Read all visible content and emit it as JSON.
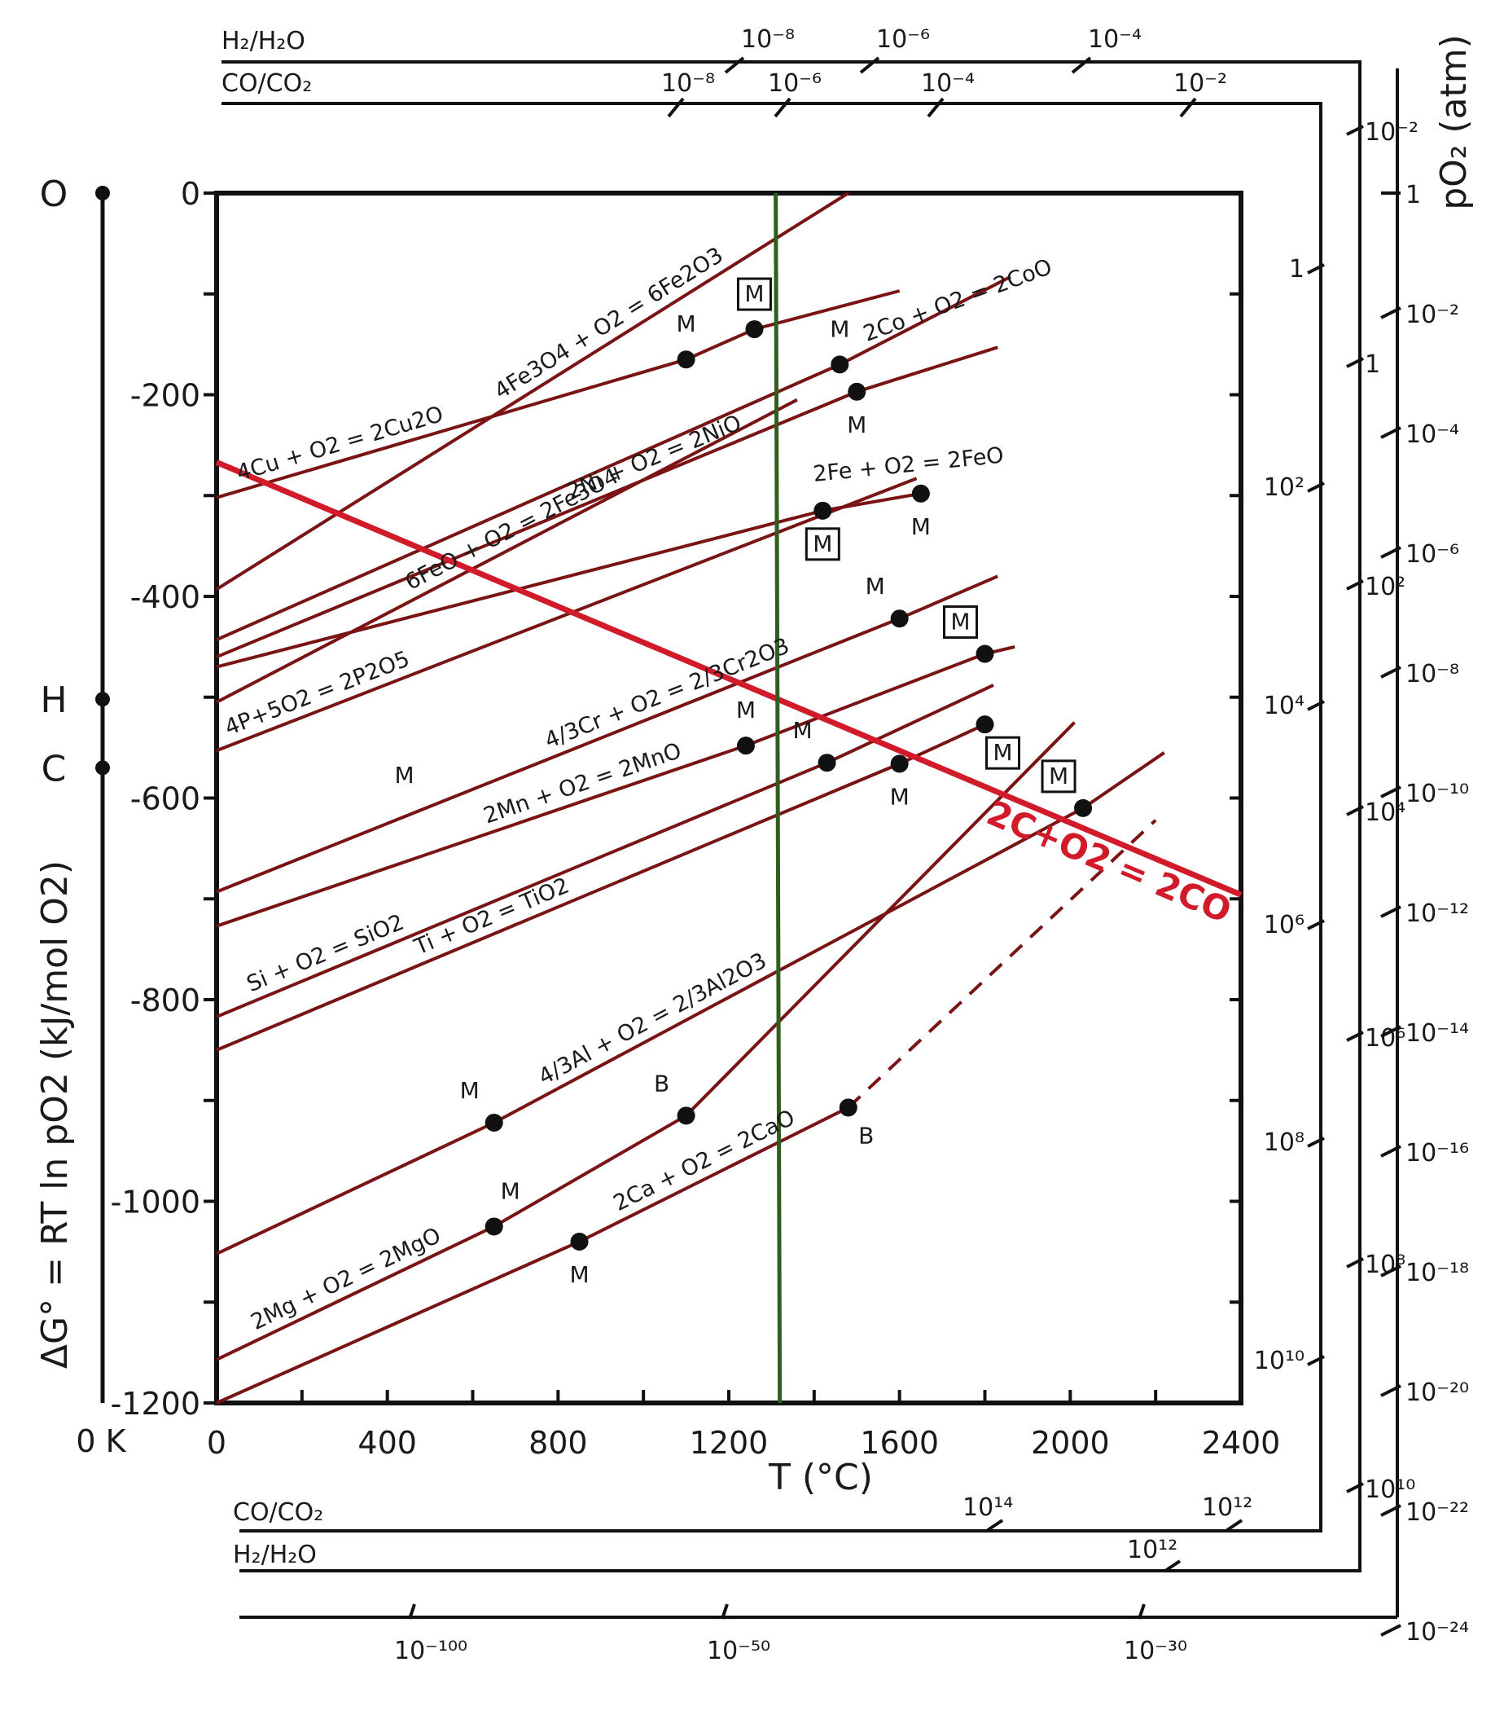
{
  "colors": {
    "reaction_line": "#7a1414",
    "carbon_line": "#d11a2a",
    "reference_line": "#2f5e1e",
    "axis": "#111111",
    "marker": "#111111"
  },
  "chart_data": {
    "type": "line",
    "title": "",
    "xlabel": "T (°C)",
    "ylabel": "ΔG° = RT ln pO2 (kJ/mol O2)",
    "xlim": [
      0,
      2400
    ],
    "ylim": [
      -1200,
      0
    ],
    "x_ticks": [
      "0",
      "400",
      "800",
      "1200",
      "1600",
      "2000",
      "2400"
    ],
    "y_ticks": [
      "0",
      "-200",
      "-400",
      "-600",
      "-800",
      "-1000",
      "-1200"
    ],
    "reference_line_T": 1310,
    "series": [
      {
        "name": "4Fe3O4 + O2 = 6Fe2O3",
        "x": [
          0,
          1480
        ],
        "y": [
          -393,
          0
        ],
        "color": "reaction_line"
      },
      {
        "name": "4Cu + O2 = 2Cu2O",
        "x": [
          0,
          1100,
          1260,
          1600
        ],
        "y": [
          -302,
          -165,
          -135,
          -97
        ],
        "color": "reaction_line"
      },
      {
        "name": "2Co + O2 = 2CoO",
        "x": [
          0,
          1460,
          1860
        ],
        "y": [
          -443,
          -170,
          -83
        ],
        "color": "reaction_line"
      },
      {
        "name": "2Ni + O2 = 2NiO",
        "x": [
          0,
          1500,
          1830
        ],
        "y": [
          -460,
          -197,
          -153
        ],
        "color": "reaction_line"
      },
      {
        "name": "6FeO + O2 = 2Fe3O4",
        "x": [
          0,
          1360
        ],
        "y": [
          -505,
          -205
        ],
        "color": "reaction_line"
      },
      {
        "name": "2Fe + O2 = 2FeO",
        "x": [
          0,
          1420,
          1650
        ],
        "y": [
          -470,
          -315,
          -298
        ],
        "color": "reaction_line"
      },
      {
        "name": "4P+5O2 = 2P2O5",
        "x": [
          0,
          1640
        ],
        "y": [
          -553,
          -283
        ],
        "color": "reaction_line"
      },
      {
        "name": "4/3Cr + O2 = 2/3Cr2O3",
        "x": [
          0,
          1600,
          1830
        ],
        "y": [
          -693,
          -422,
          -380
        ],
        "color": "reaction_line"
      },
      {
        "name": "2Mn + O2 = 2MnO",
        "x": [
          0,
          1240,
          1800,
          1870
        ],
        "y": [
          -727,
          -548,
          -457,
          -450
        ],
        "color": "reaction_line"
      },
      {
        "name": "Si + O2 = SiO2",
        "x": [
          0,
          1430,
          1820
        ],
        "y": [
          -817,
          -565,
          -488
        ],
        "color": "reaction_line"
      },
      {
        "name": "Ti + O2 = TiO2",
        "x": [
          0,
          1600,
          1800
        ],
        "y": [
          -850,
          -566,
          -527
        ],
        "color": "reaction_line"
      },
      {
        "name": "4/3Al + O2 = 2/3Al2O3",
        "x": [
          0,
          650,
          2030,
          2220
        ],
        "y": [
          -1052,
          -922,
          -610,
          -555
        ],
        "color": "reaction_line"
      },
      {
        "name": "2Mg + O2 = 2MgO",
        "x": [
          0,
          650,
          1100,
          2010
        ],
        "y": [
          -1157,
          -1025,
          -915,
          -525
        ],
        "color": "reaction_line"
      },
      {
        "name": "2Ca + O2 = 2CaO",
        "x": [
          0,
          850,
          1480
        ],
        "y": [
          -1200,
          -1040,
          -907
        ],
        "color": "reaction_line"
      },
      {
        "name": "2Ca + O2 = 2CaO (extrapolated)",
        "x": [
          1480,
          2200
        ],
        "y": [
          -907,
          -622
        ],
        "color": "reaction_line",
        "dashed": true
      },
      {
        "name": "2C+O2 = 2CO",
        "x": [
          0,
          2400
        ],
        "y": [
          -267,
          -696
        ],
        "color": "carbon_line"
      }
    ],
    "phase_markers": [
      {
        "x": 1100,
        "y": -165,
        "label": "M",
        "boxed": false,
        "pos": "above"
      },
      {
        "x": 1260,
        "y": -135,
        "label": "M",
        "boxed": true,
        "pos": "above"
      },
      {
        "x": 1460,
        "y": -170,
        "label": "M",
        "boxed": false,
        "pos": "above"
      },
      {
        "x": 1500,
        "y": -197,
        "label": "M",
        "boxed": false,
        "pos": "below"
      },
      {
        "x": 1420,
        "y": -315,
        "label": "M",
        "boxed": true,
        "pos": "below"
      },
      {
        "x": 1650,
        "y": -298,
        "label": "M",
        "boxed": false,
        "pos": "below"
      },
      {
        "x": 1600,
        "y": -422,
        "label": "M",
        "boxed": false,
        "pos": "above-left"
      },
      {
        "x": 1800,
        "y": -457,
        "label": "M",
        "boxed": true,
        "pos": "above-left"
      },
      {
        "x": 1240,
        "y": -548,
        "label": "M",
        "boxed": false,
        "pos": "above"
      },
      {
        "x": 1430,
        "y": -565,
        "label": "M",
        "boxed": false,
        "pos": "above-left"
      },
      {
        "x": 1600,
        "y": -566,
        "label": "M",
        "boxed": false,
        "pos": "below"
      },
      {
        "x": 1800,
        "y": -527,
        "label": "M",
        "boxed": true,
        "pos": "below-right"
      },
      {
        "x": 2030,
        "y": -610,
        "label": "M",
        "boxed": true,
        "pos": "above-left"
      },
      {
        "x": 650,
        "y": -922,
        "label": "M",
        "boxed": false,
        "pos": "above-left"
      },
      {
        "x": 1100,
        "y": -915,
        "label": "B",
        "boxed": false,
        "pos": "above-left"
      },
      {
        "x": 1480,
        "y": -907,
        "label": "B",
        "boxed": false,
        "pos": "below-right"
      },
      {
        "x": 650,
        "y": -1025,
        "label": "M",
        "boxed": false,
        "pos": "above-right"
      },
      {
        "x": 850,
        "y": -1040,
        "label": "M",
        "boxed": false,
        "pos": "below"
      }
    ],
    "standalone_markers": [
      {
        "x": 440,
        "y": -585,
        "label": "M"
      }
    ],
    "left_scale": {
      "points": [
        {
          "label": "O",
          "y": 0
        },
        {
          "label": "H",
          "y": -502
        },
        {
          "label": "C",
          "y": -570
        }
      ],
      "zero_label": "0 K"
    },
    "side_scales": {
      "top_h2_h2o": {
        "title": "H₂/H₂O",
        "ticks": [
          "10⁻⁸",
          "10⁻⁶",
          "10⁻⁴"
        ]
      },
      "top_co_co2": {
        "title": "CO/CO₂",
        "ticks": [
          "10⁻⁸",
          "10⁻⁶",
          "10⁻⁴",
          "10⁻²"
        ]
      },
      "right_co_co2": {
        "ticks": [
          "1",
          "10²",
          "10⁴",
          "10⁶",
          "10⁸",
          "10¹⁰"
        ]
      },
      "right_h2_h2o": {
        "ticks": [
          "10⁻²",
          "1",
          "10²",
          "10⁴",
          "10⁶",
          "10⁸",
          "10¹⁰"
        ]
      },
      "right_po2": {
        "title": "pO₂ (atm)",
        "ticks": [
          "1",
          "10⁻²",
          "10⁻⁴",
          "10⁻⁶",
          "10⁻⁸",
          "10⁻¹⁰",
          "10⁻¹²",
          "10⁻¹⁴",
          "10⁻¹⁶",
          "10⁻¹⁸",
          "10⁻²⁰",
          "10⁻²²",
          "10⁻²⁴"
        ]
      },
      "bottom_co_co2": {
        "title": "CO/CO₂",
        "ticks": [
          "10¹⁴",
          "10¹²"
        ]
      },
      "bottom_h2_h2o": {
        "title": "H₂/H₂O",
        "ticks": [
          "10¹²"
        ]
      },
      "bottom_po2": {
        "ticks": [
          "10⁻¹⁰⁰",
          "10⁻⁵⁰",
          "10⁻³⁰"
        ]
      }
    }
  }
}
